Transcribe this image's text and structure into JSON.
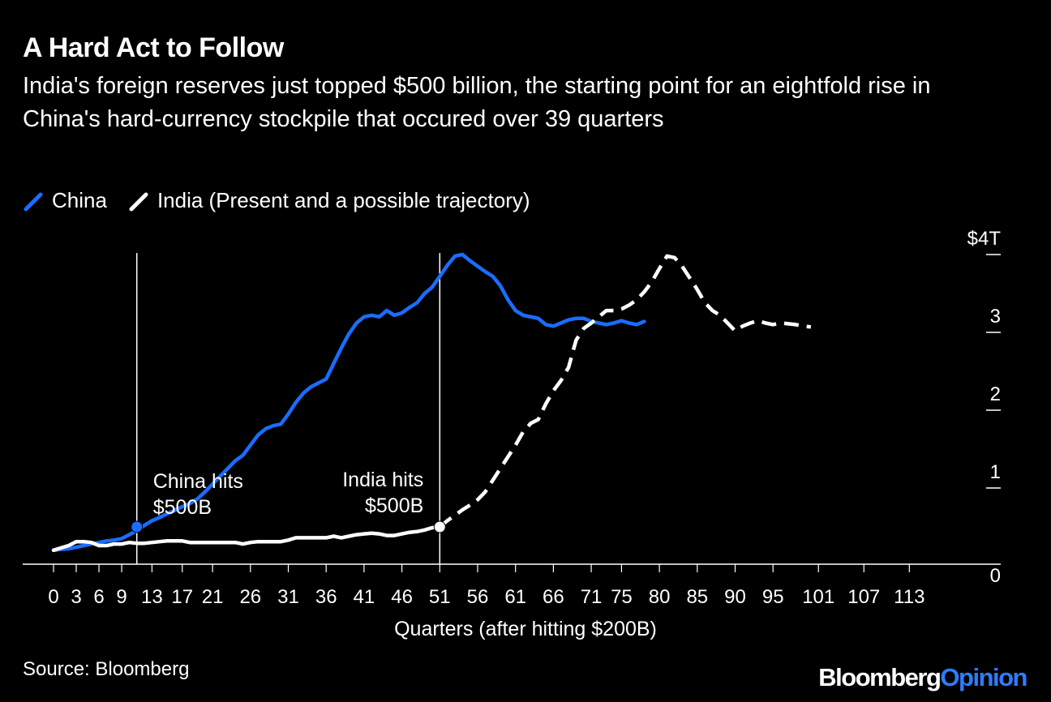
{
  "title": "A Hard Act to Follow",
  "subtitle": "India's foreign reserves just topped $500 billion, the starting point for an eightfold rise in China's hard-currency stockpile that occured over 39 quarters",
  "source": "Source: Bloomberg",
  "brand": {
    "main": "Bloomberg",
    "accent": "Opinion"
  },
  "colors": {
    "background": "#000000",
    "china": "#1a6dff",
    "india": "#ffffff",
    "text": "#ffffff"
  },
  "chart_data": {
    "type": "line",
    "xlabel": "Quarters (after hitting $200B)",
    "ylabel": "",
    "xlim": [
      0,
      118
    ],
    "ylim": [
      0,
      4
    ],
    "x_ticks": [
      "0",
      "3",
      "6",
      "9",
      "13",
      "17",
      "21",
      "26",
      "31",
      "36",
      "41",
      "46",
      "51",
      "56",
      "61",
      "66",
      "71",
      "75",
      "80",
      "85",
      "90",
      "95",
      "101",
      "107",
      "113"
    ],
    "y_ticks": [
      {
        "value": 0,
        "label": "0"
      },
      {
        "value": 1,
        "label": "1"
      },
      {
        "value": 2,
        "label": "2"
      },
      {
        "value": 3,
        "label": "3"
      },
      {
        "value": 4,
        "label": "$4T"
      }
    ],
    "y_axis_side": "right",
    "grid": false,
    "legend_position": "top-left",
    "series": [
      {
        "name": "China",
        "color": "#1a6dff",
        "style": "solid",
        "points": [
          [
            0,
            0.2
          ],
          [
            1,
            0.21
          ],
          [
            2,
            0.22
          ],
          [
            3,
            0.24
          ],
          [
            4,
            0.26
          ],
          [
            5,
            0.28
          ],
          [
            6,
            0.3
          ],
          [
            7,
            0.32
          ],
          [
            8,
            0.33
          ],
          [
            9,
            0.35
          ],
          [
            10,
            0.4
          ],
          [
            11,
            0.45
          ],
          [
            12,
            0.52
          ],
          [
            13,
            0.58
          ],
          [
            14,
            0.62
          ],
          [
            15,
            0.67
          ],
          [
            16,
            0.71
          ],
          [
            17,
            0.76
          ],
          [
            18,
            0.8
          ],
          [
            19,
            0.86
          ],
          [
            20,
            0.95
          ],
          [
            21,
            1.05
          ],
          [
            22,
            1.15
          ],
          [
            23,
            1.25
          ],
          [
            24,
            1.35
          ],
          [
            25,
            1.42
          ],
          [
            26,
            1.55
          ],
          [
            27,
            1.68
          ],
          [
            28,
            1.76
          ],
          [
            29,
            1.8
          ],
          [
            30,
            1.82
          ],
          [
            31,
            1.95
          ],
          [
            32,
            2.1
          ],
          [
            33,
            2.22
          ],
          [
            34,
            2.3
          ],
          [
            35,
            2.35
          ],
          [
            36,
            2.4
          ],
          [
            37,
            2.6
          ],
          [
            38,
            2.8
          ],
          [
            39,
            2.98
          ],
          [
            40,
            3.12
          ],
          [
            41,
            3.2
          ],
          [
            42,
            3.22
          ],
          [
            43,
            3.2
          ],
          [
            44,
            3.28
          ],
          [
            45,
            3.22
          ],
          [
            46,
            3.25
          ],
          [
            47,
            3.32
          ],
          [
            48,
            3.38
          ],
          [
            49,
            3.5
          ],
          [
            50,
            3.58
          ],
          [
            51,
            3.72
          ],
          [
            52,
            3.86
          ],
          [
            53,
            3.98
          ],
          [
            54,
            4.0
          ],
          [
            55,
            3.92
          ],
          [
            56,
            3.85
          ],
          [
            57,
            3.78
          ],
          [
            58,
            3.72
          ],
          [
            59,
            3.6
          ],
          [
            60,
            3.42
          ],
          [
            61,
            3.28
          ],
          [
            62,
            3.22
          ],
          [
            63,
            3.2
          ],
          [
            64,
            3.18
          ],
          [
            65,
            3.1
          ],
          [
            66,
            3.08
          ],
          [
            67,
            3.12
          ],
          [
            68,
            3.16
          ],
          [
            69,
            3.18
          ],
          [
            70,
            3.18
          ],
          [
            71,
            3.14
          ],
          [
            72,
            3.12
          ],
          [
            73,
            3.1
          ],
          [
            74,
            3.12
          ],
          [
            75,
            3.15
          ],
          [
            76,
            3.12
          ],
          [
            77,
            3.1
          ],
          [
            78,
            3.14
          ]
        ]
      },
      {
        "name": "India (Present and a possible trajectory)",
        "color": "#ffffff",
        "style": "solid-then-dashed",
        "dash_from_x": 51,
        "points": [
          [
            0,
            0.2
          ],
          [
            1,
            0.23
          ],
          [
            2,
            0.26
          ],
          [
            3,
            0.31
          ],
          [
            4,
            0.31
          ],
          [
            5,
            0.3
          ],
          [
            6,
            0.26
          ],
          [
            7,
            0.26
          ],
          [
            8,
            0.28
          ],
          [
            9,
            0.28
          ],
          [
            10,
            0.3
          ],
          [
            11,
            0.29
          ],
          [
            12,
            0.29
          ],
          [
            13,
            0.3
          ],
          [
            14,
            0.31
          ],
          [
            15,
            0.32
          ],
          [
            16,
            0.32
          ],
          [
            17,
            0.32
          ],
          [
            18,
            0.3
          ],
          [
            19,
            0.3
          ],
          [
            20,
            0.3
          ],
          [
            21,
            0.3
          ],
          [
            22,
            0.3
          ],
          [
            23,
            0.3
          ],
          [
            24,
            0.3
          ],
          [
            25,
            0.28
          ],
          [
            26,
            0.3
          ],
          [
            27,
            0.31
          ],
          [
            28,
            0.31
          ],
          [
            29,
            0.31
          ],
          [
            30,
            0.31
          ],
          [
            31,
            0.33
          ],
          [
            32,
            0.36
          ],
          [
            33,
            0.36
          ],
          [
            34,
            0.36
          ],
          [
            35,
            0.36
          ],
          [
            36,
            0.36
          ],
          [
            37,
            0.38
          ],
          [
            38,
            0.36
          ],
          [
            39,
            0.38
          ],
          [
            40,
            0.4
          ],
          [
            41,
            0.41
          ],
          [
            42,
            0.42
          ],
          [
            43,
            0.41
          ],
          [
            44,
            0.39
          ],
          [
            45,
            0.39
          ],
          [
            46,
            0.41
          ],
          [
            47,
            0.43
          ],
          [
            48,
            0.44
          ],
          [
            49,
            0.46
          ],
          [
            50,
            0.49
          ],
          [
            51,
            0.5
          ],
          [
            52,
            0.58
          ],
          [
            53,
            0.65
          ],
          [
            54,
            0.72
          ],
          [
            55,
            0.78
          ],
          [
            56,
            0.85
          ],
          [
            57,
            0.95
          ],
          [
            58,
            1.1
          ],
          [
            59,
            1.25
          ],
          [
            60,
            1.4
          ],
          [
            61,
            1.55
          ],
          [
            62,
            1.72
          ],
          [
            63,
            1.83
          ],
          [
            64,
            1.88
          ],
          [
            65,
            2.08
          ],
          [
            66,
            2.25
          ],
          [
            67,
            2.38
          ],
          [
            68,
            2.55
          ],
          [
            69,
            2.9
          ],
          [
            70,
            3.05
          ],
          [
            71,
            3.12
          ],
          [
            72,
            3.2
          ],
          [
            73,
            3.28
          ],
          [
            74,
            3.28
          ],
          [
            75,
            3.3
          ],
          [
            76,
            3.35
          ],
          [
            77,
            3.42
          ],
          [
            78,
            3.52
          ],
          [
            79,
            3.65
          ],
          [
            80,
            3.82
          ],
          [
            81,
            3.98
          ],
          [
            82,
            3.96
          ],
          [
            83,
            3.85
          ],
          [
            84,
            3.7
          ],
          [
            85,
            3.55
          ],
          [
            86,
            3.38
          ],
          [
            87,
            3.28
          ],
          [
            88,
            3.22
          ],
          [
            89,
            3.12
          ],
          [
            90,
            3.02
          ],
          [
            91,
            3.08
          ],
          [
            92,
            3.12
          ],
          [
            93,
            3.15
          ],
          [
            94,
            3.12
          ],
          [
            95,
            3.1
          ],
          [
            96,
            3.12
          ],
          [
            97,
            3.11
          ],
          [
            98,
            3.1
          ],
          [
            99,
            3.08
          ],
          [
            100,
            3.07
          ]
        ]
      }
    ],
    "annotations": [
      {
        "text_lines": [
          "China hits",
          "$500B"
        ],
        "x": 11,
        "y": 0.5,
        "series": "China"
      },
      {
        "text_lines": [
          "India hits",
          "$500B"
        ],
        "x": 51,
        "y": 0.5,
        "series": "India (Present and a possible trajectory)"
      }
    ]
  }
}
